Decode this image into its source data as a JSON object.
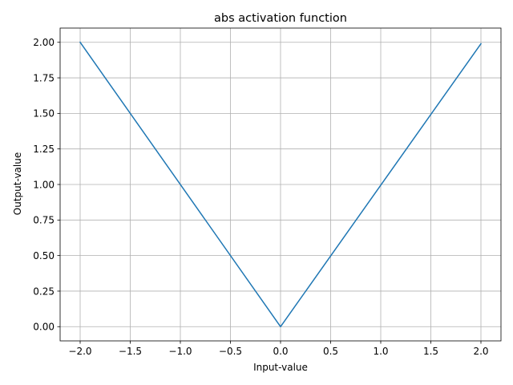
{
  "chart_data": {
    "type": "line",
    "title": "abs activation function",
    "xlabel": "Input-value",
    "ylabel": "Output-value",
    "xlim": [
      -2.2,
      2.2
    ],
    "ylim": [
      -0.1,
      2.1
    ],
    "xticks": [
      -2.0,
      -1.5,
      -1.0,
      -0.5,
      0.0,
      0.5,
      1.0,
      1.5,
      2.0
    ],
    "xtick_labels": [
      "−2.0",
      "−1.5",
      "−1.0",
      "−0.5",
      "0.0",
      "0.5",
      "1.0",
      "1.5",
      "2.0"
    ],
    "yticks": [
      0.0,
      0.25,
      0.5,
      0.75,
      1.0,
      1.25,
      1.5,
      1.75,
      2.0
    ],
    "ytick_labels": [
      "0.00",
      "0.25",
      "0.50",
      "0.75",
      "1.00",
      "1.25",
      "1.50",
      "1.75",
      "2.00"
    ],
    "grid": true,
    "series": [
      {
        "color": "#1f77b4",
        "x": [
          -2.0,
          0.0,
          2.0
        ],
        "y": [
          2.0,
          0.0,
          1.99
        ]
      }
    ]
  }
}
